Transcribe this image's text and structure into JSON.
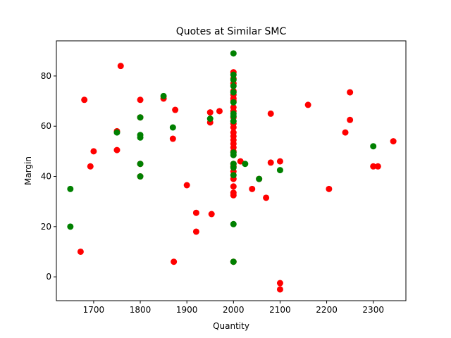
{
  "chart_data": {
    "type": "scatter",
    "title": "Quotes at Similar SMC",
    "xlabel": "Quantity",
    "ylabel": "Margin",
    "xlim": [
      1620,
      2370
    ],
    "ylim": [
      -9.5,
      94
    ],
    "xticks": [
      1700,
      1800,
      1900,
      2000,
      2100,
      2200,
      2300
    ],
    "yticks": [
      0,
      20,
      40,
      60,
      80
    ],
    "grid": false,
    "series": [
      {
        "color": "#ff0000",
        "points": [
          [
            1672,
            10
          ],
          [
            1680,
            70.5
          ],
          [
            1693,
            44
          ],
          [
            1700,
            50
          ],
          [
            1750,
            50.5
          ],
          [
            1750,
            58
          ],
          [
            1758,
            84
          ],
          [
            1800,
            70.5
          ],
          [
            1800,
            63.5
          ],
          [
            1800,
            45
          ],
          [
            1800,
            40
          ],
          [
            1850,
            71
          ],
          [
            1870,
            55
          ],
          [
            1875,
            66.5
          ],
          [
            1872,
            6
          ],
          [
            1900,
            36.5
          ],
          [
            1920,
            25.5
          ],
          [
            1920,
            18
          ],
          [
            1950,
            65.5
          ],
          [
            1950,
            61.5
          ],
          [
            1953,
            25
          ],
          [
            1970,
            66
          ],
          [
            2000,
            81.5
          ],
          [
            2000,
            79
          ],
          [
            2000,
            77
          ],
          [
            2000,
            74
          ],
          [
            2000,
            72.5
          ],
          [
            2000,
            71
          ],
          [
            2000,
            70
          ],
          [
            2000,
            67.5
          ],
          [
            2000,
            66
          ],
          [
            2000,
            63.5
          ],
          [
            2000,
            61
          ],
          [
            2000,
            59.5
          ],
          [
            2000,
            57.5
          ],
          [
            2000,
            56
          ],
          [
            2000,
            54.5
          ],
          [
            2000,
            53
          ],
          [
            2000,
            51.5
          ],
          [
            2000,
            50
          ],
          [
            2000,
            45
          ],
          [
            2000,
            44
          ],
          [
            2000,
            42
          ],
          [
            2000,
            39
          ],
          [
            2000,
            36
          ],
          [
            2000,
            33.5
          ],
          [
            2000,
            32.5
          ],
          [
            2000,
            6
          ],
          [
            2015,
            46
          ],
          [
            2040,
            35
          ],
          [
            2055,
            39
          ],
          [
            2070,
            31.5
          ],
          [
            2080,
            65
          ],
          [
            2080,
            45.5
          ],
          [
            2100,
            46
          ],
          [
            2100,
            -2.5
          ],
          [
            2100,
            -5
          ],
          [
            2160,
            68.5
          ],
          [
            2205,
            35
          ],
          [
            2240,
            57.5
          ],
          [
            2250,
            73.5
          ],
          [
            2250,
            62.5
          ],
          [
            2300,
            44
          ],
          [
            2310,
            44
          ],
          [
            2343,
            54
          ]
        ]
      },
      {
        "color": "#008000",
        "points": [
          [
            1650,
            35
          ],
          [
            1650,
            20
          ],
          [
            1750,
            57.5
          ],
          [
            1800,
            63.5
          ],
          [
            1800,
            56.5
          ],
          [
            1800,
            55.5
          ],
          [
            1800,
            45
          ],
          [
            1800,
            40
          ],
          [
            1850,
            72
          ],
          [
            1870,
            59.5
          ],
          [
            1950,
            63
          ],
          [
            2000,
            89
          ],
          [
            2000,
            80.5
          ],
          [
            2000,
            78.5
          ],
          [
            2000,
            76
          ],
          [
            2000,
            73.5
          ],
          [
            2000,
            69.5
          ],
          [
            2000,
            65
          ],
          [
            2000,
            64
          ],
          [
            2000,
            62
          ],
          [
            2000,
            49.5
          ],
          [
            2000,
            48.5
          ],
          [
            2000,
            45
          ],
          [
            2000,
            43.5
          ],
          [
            2000,
            40.5
          ],
          [
            2000,
            21
          ],
          [
            2000,
            6
          ],
          [
            2025,
            45
          ],
          [
            2055,
            39
          ],
          [
            2100,
            42.5
          ],
          [
            2300,
            52
          ]
        ]
      }
    ]
  }
}
